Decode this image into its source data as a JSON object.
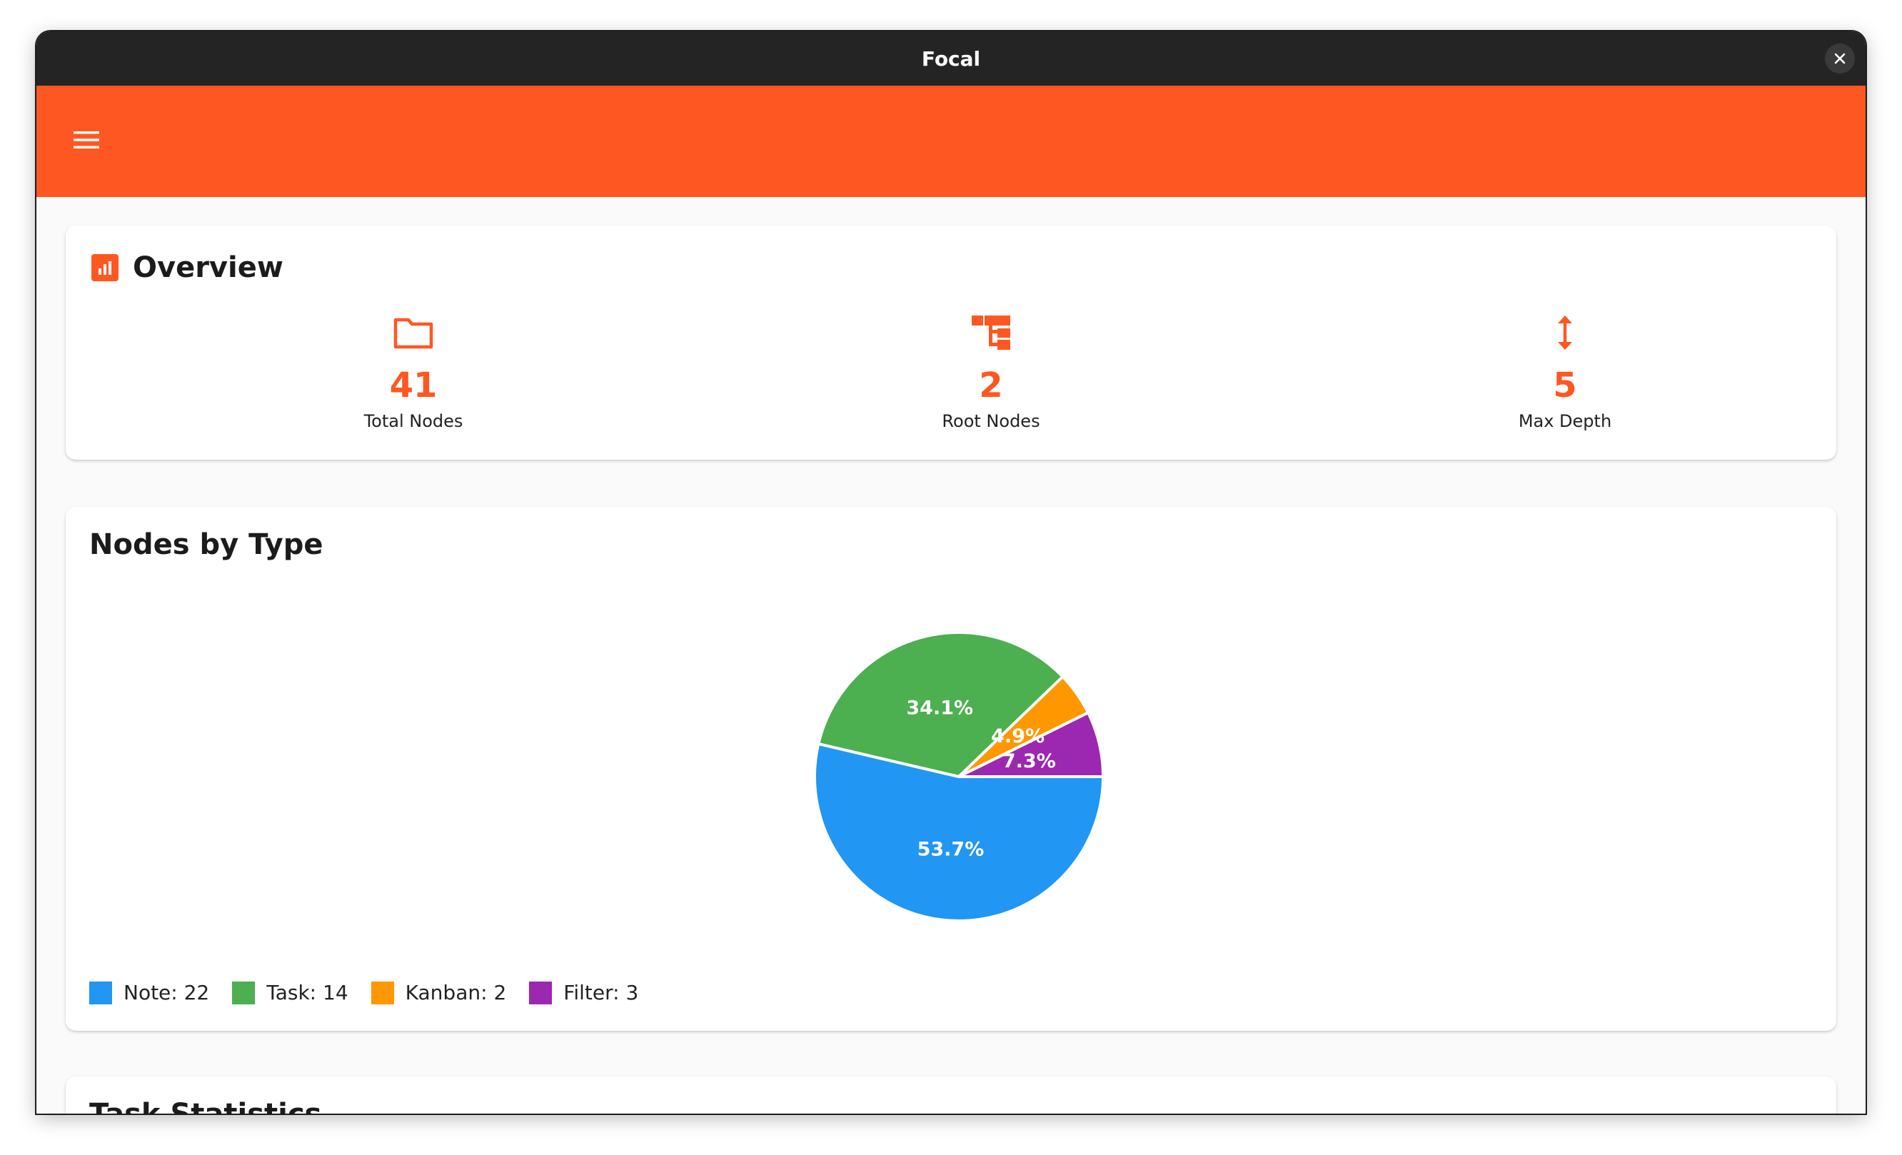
{
  "window": {
    "title": "Focal"
  },
  "colors": {
    "accent": "#ff5722",
    "titlebar": "#242424",
    "note": "#2196f3",
    "task": "#4caf50",
    "kanban": "#ff9800",
    "filter": "#9c27b0"
  },
  "icons": {
    "menu": "menu-icon",
    "close": "close-icon",
    "overview": "bar-chart-icon",
    "total_nodes": "folder-icon",
    "root_nodes": "account-tree-icon",
    "max_depth": "vertical-arrows-icon"
  },
  "overview": {
    "title": "Overview",
    "stats": [
      {
        "value": "41",
        "label": "Total Nodes"
      },
      {
        "value": "2",
        "label": "Root Nodes"
      },
      {
        "value": "5",
        "label": "Max Depth"
      }
    ]
  },
  "nodes_by_type": {
    "title": "Nodes by Type",
    "legend": [
      {
        "label": "Note: 22"
      },
      {
        "label": "Task: 14"
      },
      {
        "label": "Kanban: 2"
      },
      {
        "label": "Filter: 3"
      }
    ]
  },
  "task_statistics": {
    "title": "Task Statistics"
  },
  "chart_data": {
    "type": "pie",
    "categories": [
      "Note",
      "Task",
      "Kanban",
      "Filter"
    ],
    "values": [
      22,
      14,
      2,
      3
    ],
    "slice_labels": [
      "53.7%",
      "34.1%",
      "4.9%",
      "7.3%"
    ],
    "title": "Nodes by Type",
    "legend_placement": "bottom-left"
  }
}
